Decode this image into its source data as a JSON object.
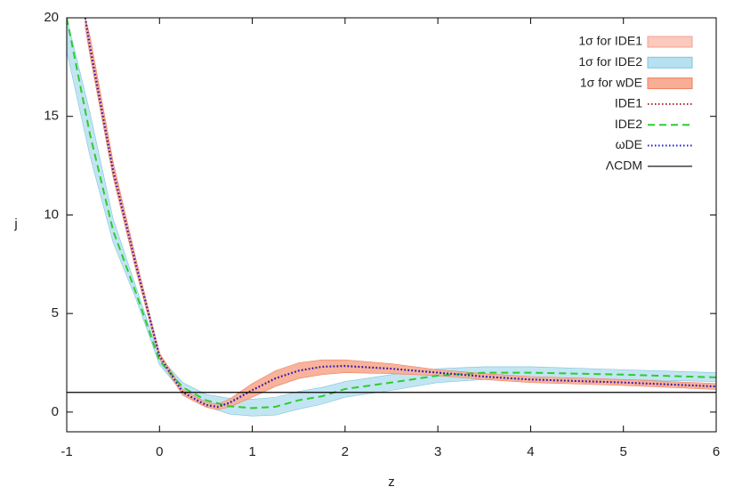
{
  "chart_data": {
    "type": "line",
    "xlabel": "z",
    "ylabel": "j",
    "xlim": [
      -1,
      6
    ],
    "ylim": [
      -1,
      20
    ],
    "xticks": [
      -1,
      0,
      1,
      2,
      3,
      4,
      5,
      6
    ],
    "yticks": [
      0,
      5,
      10,
      15,
      20
    ],
    "grid": false,
    "legend": "top-right",
    "bands": [
      {
        "name": "1σ for IDE1",
        "color": "#fbc9bd",
        "edge": "#f5a090",
        "x": [
          -0.8,
          -0.75,
          -0.5,
          -0.25,
          0,
          0.25,
          0.5,
          0.625,
          0.75,
          1,
          1.25,
          1.5,
          1.75,
          2,
          2.5,
          3,
          3.5,
          4,
          5,
          6
        ],
        "lower": [
          19.6,
          18.2,
          12.0,
          7.2,
          2.75,
          0.9,
          0.28,
          0.15,
          0.3,
          0.8,
          1.35,
          1.75,
          1.95,
          2.05,
          2.0,
          1.9,
          1.7,
          1.55,
          1.4,
          1.2
        ],
        "upper": [
          20,
          19.0,
          12.6,
          7.6,
          2.95,
          1.1,
          0.45,
          0.35,
          0.6,
          1.4,
          2.05,
          2.45,
          2.6,
          2.6,
          2.4,
          2.1,
          1.9,
          1.75,
          1.6,
          1.4
        ]
      },
      {
        "name": "1σ for IDE2",
        "color": "#b7e0f0",
        "edge": "#7fc4dc",
        "x": [
          -1,
          -0.75,
          -0.5,
          -0.25,
          0,
          0.25,
          0.5,
          0.75,
          1,
          1.25,
          1.5,
          1.75,
          2,
          2.5,
          3,
          3.5,
          4,
          5,
          6
        ],
        "lower": [
          18.3,
          13.0,
          8.6,
          5.7,
          2.4,
          1.0,
          0.3,
          -0.1,
          -0.2,
          -0.15,
          0.15,
          0.4,
          0.75,
          1.1,
          1.5,
          1.65,
          1.7,
          1.65,
          1.55
        ],
        "upper": [
          20,
          15.2,
          9.8,
          6.3,
          2.8,
          1.5,
          0.9,
          0.7,
          0.65,
          0.75,
          1.05,
          1.25,
          1.55,
          1.9,
          2.2,
          2.3,
          2.3,
          2.15,
          2.0
        ]
      },
      {
        "name": "1σ for wDE",
        "color": "#f7ae94",
        "edge": "#ee7f5f",
        "x": [
          -0.8,
          -0.75,
          -0.5,
          -0.25,
          0,
          0.25,
          0.5,
          0.625,
          0.75,
          1,
          1.25,
          1.5,
          1.75,
          2,
          2.5,
          3,
          3.5,
          4,
          5,
          6
        ],
        "lower": [
          19.5,
          18.1,
          11.9,
          7.1,
          2.7,
          0.85,
          0.25,
          0.12,
          0.25,
          0.75,
          1.3,
          1.7,
          1.9,
          2.0,
          1.95,
          1.85,
          1.65,
          1.5,
          1.35,
          1.15
        ],
        "upper": [
          20,
          19.1,
          12.7,
          7.7,
          3.0,
          1.15,
          0.5,
          0.4,
          0.65,
          1.45,
          2.1,
          2.5,
          2.65,
          2.65,
          2.45,
          2.15,
          1.95,
          1.8,
          1.65,
          1.45
        ]
      }
    ],
    "series": [
      {
        "name": "IDE1",
        "color": "#b0202a",
        "style": "dotted",
        "x": [
          -0.8,
          -0.75,
          -0.5,
          -0.25,
          0,
          0.25,
          0.5,
          0.625,
          0.75,
          1,
          1.25,
          1.5,
          1.75,
          2,
          2.5,
          3,
          3.5,
          4,
          5,
          6
        ],
        "values": [
          20,
          18.6,
          12.3,
          7.4,
          2.85,
          1.0,
          0.35,
          0.25,
          0.45,
          1.1,
          1.7,
          2.1,
          2.3,
          2.35,
          2.2,
          2.0,
          1.8,
          1.65,
          1.5,
          1.3
        ]
      },
      {
        "name": "IDE2",
        "color": "#2ecc2e",
        "style": "dashed",
        "x": [
          -1,
          -0.75,
          -0.5,
          -0.25,
          0,
          0.25,
          0.5,
          0.75,
          1,
          1.25,
          1.5,
          1.75,
          2,
          2.5,
          3,
          3.5,
          4,
          5,
          6
        ],
        "values": [
          20,
          14.1,
          9.2,
          6.0,
          2.6,
          1.26,
          0.6,
          0.3,
          0.2,
          0.27,
          0.6,
          0.8,
          1.17,
          1.5,
          1.85,
          2.0,
          2.0,
          1.9,
          1.76
        ]
      },
      {
        "name": "ωDE",
        "color": "#1a1ac8",
        "style": "dotted",
        "x": [
          -0.8,
          -0.75,
          -0.5,
          -0.25,
          0,
          0.25,
          0.5,
          0.625,
          0.75,
          1,
          1.25,
          1.5,
          1.75,
          2,
          2.5,
          3,
          3.5,
          4,
          5,
          6
        ],
        "values": [
          20,
          18.5,
          12.2,
          7.4,
          2.85,
          1.0,
          0.37,
          0.27,
          0.47,
          1.12,
          1.72,
          2.1,
          2.3,
          2.33,
          2.2,
          2.0,
          1.8,
          1.65,
          1.5,
          1.3
        ]
      },
      {
        "name": "ΛCDM",
        "color": "#000000",
        "style": "solid",
        "x": [
          -1,
          6
        ],
        "values": [
          1,
          1
        ]
      }
    ]
  }
}
